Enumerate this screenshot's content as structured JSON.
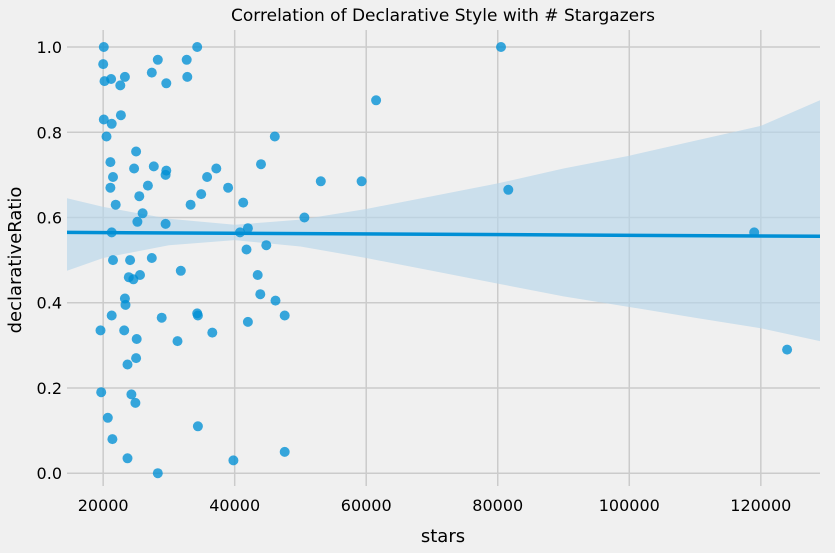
{
  "chart_data": {
    "type": "scatter",
    "title": "Correlation of Declarative Style with # Stargazers",
    "xlabel": "stars",
    "ylabel": "declarativeRatio",
    "xlim": [
      14500,
      129000
    ],
    "ylim": [
      -0.03,
      1.04
    ],
    "xticks": [
      20000,
      40000,
      60000,
      80000,
      100000,
      120000
    ],
    "xtick_labels": [
      "20000",
      "40000",
      "60000",
      "80000",
      "100000",
      "120000"
    ],
    "yticks": [
      0.0,
      0.2,
      0.4,
      0.6,
      0.8,
      1.0
    ],
    "ytick_labels": [
      "0.0",
      "0.2",
      "0.4",
      "0.6",
      "0.8",
      "1.0"
    ],
    "grid": true,
    "colors": {
      "background": "#f0f0f0",
      "grid": "#cbcbcb",
      "point": "#008fd5",
      "band": "#b7d5ea"
    },
    "regression": {
      "x": [
        14500,
        129000
      ],
      "y": [
        0.565,
        0.556
      ]
    },
    "confidence_band": {
      "x": [
        14500,
        20000,
        30000,
        40000,
        50000,
        60000,
        70000,
        80000,
        90000,
        100000,
        110000,
        120000,
        129000
      ],
      "lower": [
        0.475,
        0.505,
        0.535,
        0.547,
        0.532,
        0.505,
        0.475,
        0.445,
        0.415,
        0.39,
        0.365,
        0.34,
        0.31
      ],
      "upper": [
        0.645,
        0.625,
        0.597,
        0.583,
        0.595,
        0.62,
        0.65,
        0.68,
        0.715,
        0.745,
        0.78,
        0.815,
        0.875
      ]
    },
    "points": [
      [
        20100,
        1.0
      ],
      [
        34300,
        1.0
      ],
      [
        80500,
        1.0
      ],
      [
        28300,
        0.97
      ],
      [
        32700,
        0.97
      ],
      [
        20000,
        0.96
      ],
      [
        27400,
        0.94
      ],
      [
        32800,
        0.93
      ],
      [
        21200,
        0.925
      ],
      [
        23300,
        0.93
      ],
      [
        20200,
        0.92
      ],
      [
        29600,
        0.915
      ],
      [
        22600,
        0.91
      ],
      [
        61500,
        0.875
      ],
      [
        22700,
        0.84
      ],
      [
        20100,
        0.83
      ],
      [
        21300,
        0.82
      ],
      [
        46100,
        0.79
      ],
      [
        20500,
        0.79
      ],
      [
        25000,
        0.755
      ],
      [
        21100,
        0.73
      ],
      [
        44000,
        0.725
      ],
      [
        27700,
        0.72
      ],
      [
        24700,
        0.715
      ],
      [
        37200,
        0.715
      ],
      [
        29600,
        0.71
      ],
      [
        29500,
        0.7
      ],
      [
        21500,
        0.695
      ],
      [
        35800,
        0.695
      ],
      [
        53100,
        0.685
      ],
      [
        59300,
        0.685
      ],
      [
        26800,
        0.675
      ],
      [
        21100,
        0.67
      ],
      [
        39000,
        0.67
      ],
      [
        81600,
        0.665
      ],
      [
        34900,
        0.655
      ],
      [
        25500,
        0.65
      ],
      [
        21900,
        0.63
      ],
      [
        33300,
        0.63
      ],
      [
        41300,
        0.635
      ],
      [
        26000,
        0.61
      ],
      [
        50600,
        0.6
      ],
      [
        25200,
        0.59
      ],
      [
        29500,
        0.585
      ],
      [
        42000,
        0.575
      ],
      [
        119000,
        0.565
      ],
      [
        21300,
        0.565
      ],
      [
        40800,
        0.565
      ],
      [
        44800,
        0.535
      ],
      [
        41800,
        0.525
      ],
      [
        27400,
        0.505
      ],
      [
        21500,
        0.5
      ],
      [
        24100,
        0.5
      ],
      [
        31800,
        0.475
      ],
      [
        43500,
        0.465
      ],
      [
        25600,
        0.465
      ],
      [
        23900,
        0.46
      ],
      [
        24600,
        0.455
      ],
      [
        43900,
        0.42
      ],
      [
        23300,
        0.41
      ],
      [
        46200,
        0.405
      ],
      [
        23400,
        0.395
      ],
      [
        34300,
        0.375
      ],
      [
        34400,
        0.37
      ],
      [
        21300,
        0.37
      ],
      [
        47600,
        0.37
      ],
      [
        28900,
        0.365
      ],
      [
        42000,
        0.355
      ],
      [
        19600,
        0.335
      ],
      [
        23200,
        0.335
      ],
      [
        36600,
        0.33
      ],
      [
        25100,
        0.315
      ],
      [
        31300,
        0.31
      ],
      [
        124000,
        0.29
      ],
      [
        25000,
        0.27
      ],
      [
        23700,
        0.255
      ],
      [
        19700,
        0.19
      ],
      [
        24300,
        0.185
      ],
      [
        24900,
        0.165
      ],
      [
        20700,
        0.13
      ],
      [
        34400,
        0.11
      ],
      [
        21400,
        0.08
      ],
      [
        47600,
        0.05
      ],
      [
        23700,
        0.035
      ],
      [
        39800,
        0.03
      ],
      [
        28300,
        0.0
      ]
    ]
  }
}
